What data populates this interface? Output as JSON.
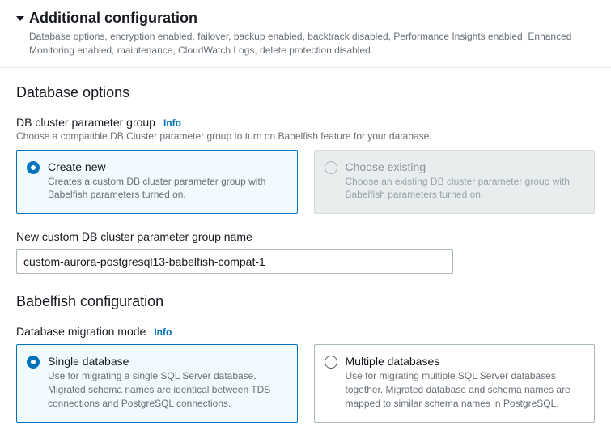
{
  "header": {
    "title": "Additional configuration",
    "subtitle": "Database options, encryption enabled, failover, backup enabled, backtrack disabled, Performance Insights enabled, Enhanced Monitoring enabled, maintenance, CloudWatch Logs, delete protection disabled."
  },
  "database_options": {
    "heading": "Database options",
    "param_group": {
      "label": "DB cluster parameter group",
      "info": "Info",
      "description": "Choose a compatible DB Cluster parameter group to turn on Babelfish feature for your database.",
      "tiles": {
        "create": {
          "title": "Create new",
          "desc": "Creates a custom DB cluster parameter group with Babelfish parameters turned on.",
          "selected": true,
          "disabled": false
        },
        "existing": {
          "title": "Choose existing",
          "desc": "Choose an existing DB cluster parameter group with Babelfish parameters turned on.",
          "selected": false,
          "disabled": true
        }
      }
    },
    "new_group_name": {
      "label": "New custom DB cluster parameter group name",
      "value": "custom-aurora-postgresql13-babelfish-compat-1"
    }
  },
  "babelfish": {
    "heading": "Babelfish configuration",
    "migration_mode": {
      "label": "Database migration mode",
      "info": "Info",
      "tiles": {
        "single": {
          "title": "Single database",
          "desc": "Use for migrating a single SQL Server database. Migrated schema names are identical between TDS connections and PostgreSQL connections.",
          "selected": true
        },
        "multiple": {
          "title": "Multiple databases",
          "desc": "Use for migrating multiple SQL Server databases together. Migrated database and schema names are mapped to similar schema names in PostgreSQL.",
          "selected": false
        }
      }
    }
  },
  "colors": {
    "accent": "#0073bb",
    "selected_bg": "#f1faff",
    "muted": "#687078",
    "disabled_bg": "#eaeded"
  }
}
